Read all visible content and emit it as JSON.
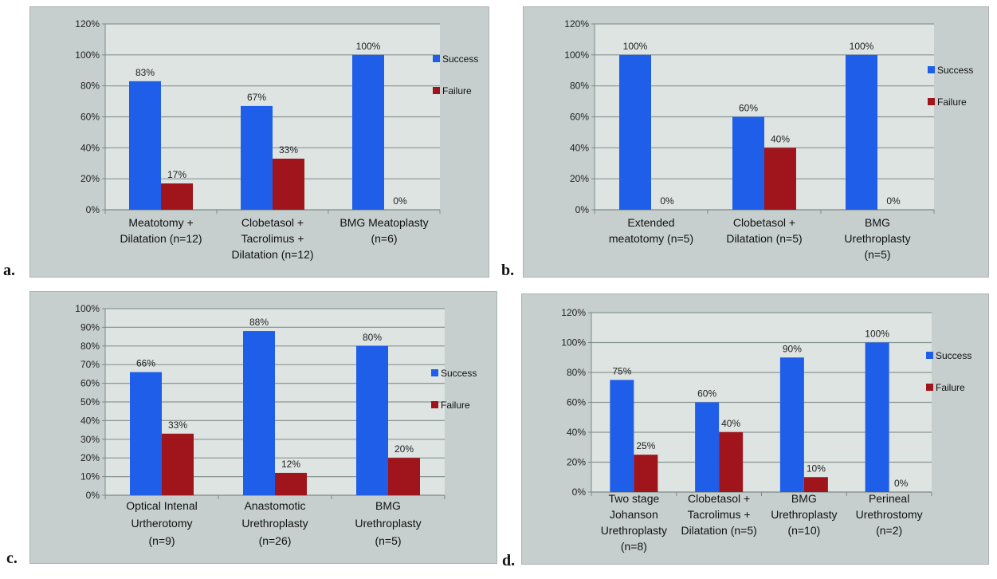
{
  "colors": {
    "success": "#1f5ee8",
    "failure": "#a0141c",
    "plot_bg": "#dde4e2",
    "frame_bg": "#c6cfcd",
    "gridline": "#8a9694"
  },
  "chart_data": [
    {
      "id": "a",
      "panel_label": "a.",
      "type": "bar",
      "title": "",
      "xlabel": "",
      "ylabel": "",
      "ylim": [
        0,
        120
      ],
      "yticks": [
        "0%",
        "20%",
        "40%",
        "60%",
        "80%",
        "100%",
        "120%"
      ],
      "ytick_values": [
        0,
        20,
        40,
        60,
        80,
        100,
        120
      ],
      "grid": true,
      "legend_position": "right",
      "categories": [
        [
          "Meatotomy +",
          "Dilatation (n=12)"
        ],
        [
          "Clobetasol +",
          "Tacrolimus +",
          "Dilatation (n=12)"
        ],
        [
          "BMG Meatoplasty",
          "(n=6)"
        ]
      ],
      "series": [
        {
          "name": "Success",
          "values": [
            83,
            67,
            100
          ],
          "labels": [
            "83%",
            "67%",
            "100%"
          ]
        },
        {
          "name": "Failure",
          "values": [
            17,
            33,
            0
          ],
          "labels": [
            "17%",
            "33%",
            "0%"
          ]
        }
      ]
    },
    {
      "id": "b",
      "panel_label": "b.",
      "type": "bar",
      "title": "",
      "xlabel": "",
      "ylabel": "",
      "ylim": [
        0,
        120
      ],
      "yticks": [
        "0%",
        "20%",
        "40%",
        "60%",
        "80%",
        "100%",
        "120%"
      ],
      "ytick_values": [
        0,
        20,
        40,
        60,
        80,
        100,
        120
      ],
      "grid": true,
      "legend_position": "right",
      "categories": [
        [
          "Extended",
          "meatotomy (n=5)"
        ],
        [
          "Clobetasol +",
          "Dilatation (n=5)"
        ],
        [
          "BMG",
          "Urethroplasty",
          "(n=5)"
        ]
      ],
      "series": [
        {
          "name": "Success",
          "values": [
            100,
            60,
            100
          ],
          "labels": [
            "100%",
            "60%",
            "100%"
          ]
        },
        {
          "name": "Failure",
          "values": [
            0,
            40,
            0
          ],
          "labels": [
            "0%",
            "40%",
            "0%"
          ]
        }
      ]
    },
    {
      "id": "c",
      "panel_label": "c.",
      "type": "bar",
      "title": "",
      "xlabel": "",
      "ylabel": "",
      "ylim": [
        0,
        100
      ],
      "yticks": [
        "0%",
        "10%",
        "20%",
        "30%",
        "40%",
        "50%",
        "60%",
        "70%",
        "80%",
        "90%",
        "100%"
      ],
      "ytick_values": [
        0,
        10,
        20,
        30,
        40,
        50,
        60,
        70,
        80,
        90,
        100
      ],
      "grid": true,
      "legend_position": "right",
      "categories": [
        [
          "Optical Intenal",
          "Urtherotomy",
          "(n=9)"
        ],
        [
          "Anastomotic",
          "Urethroplasty",
          "(n=26)"
        ],
        [
          "BMG",
          "Urethroplasty",
          "(n=5)"
        ]
      ],
      "series": [
        {
          "name": "Success",
          "values": [
            66,
            88,
            80
          ],
          "labels": [
            "66%",
            "88%",
            "80%"
          ]
        },
        {
          "name": "Failure",
          "values": [
            33,
            12,
            20
          ],
          "labels": [
            "33%",
            "12%",
            "20%"
          ]
        }
      ]
    },
    {
      "id": "d",
      "panel_label": "d.",
      "type": "bar",
      "title": "",
      "xlabel": "",
      "ylabel": "",
      "ylim": [
        0,
        120
      ],
      "yticks": [
        "0%",
        "20%",
        "40%",
        "60%",
        "80%",
        "100%",
        "120%"
      ],
      "ytick_values": [
        0,
        20,
        40,
        60,
        80,
        100,
        120
      ],
      "grid": true,
      "legend_position": "right",
      "categories": [
        [
          "Two stage",
          "Johanson",
          "Urethroplasty",
          "(n=8)"
        ],
        [
          "Clobetasol +",
          "Tacrolimus +",
          "Dilatation (n=5)"
        ],
        [
          "BMG",
          "Urethroplasty",
          "(n=10)"
        ],
        [
          "Perineal",
          "Urethrostomy",
          "(n=2)"
        ]
      ],
      "series": [
        {
          "name": "Success",
          "values": [
            75,
            60,
            90,
            100
          ],
          "labels": [
            "75%",
            "60%",
            "90%",
            "100%"
          ]
        },
        {
          "name": "Failure",
          "values": [
            25,
            40,
            10,
            0
          ],
          "labels": [
            "25%",
            "40%",
            "10%",
            "0%"
          ]
        }
      ]
    }
  ]
}
